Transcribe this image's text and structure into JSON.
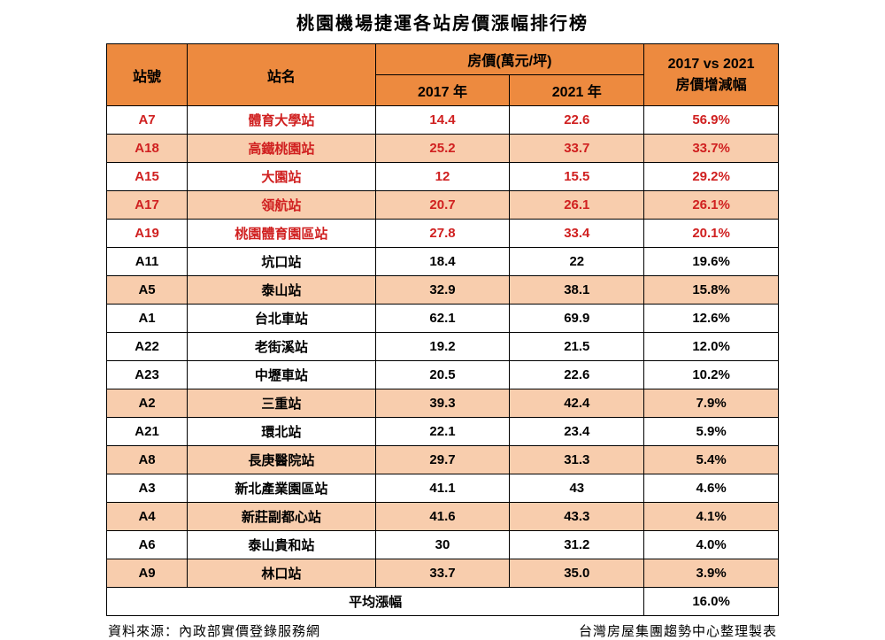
{
  "title": "桃園機場捷運各站房價漲幅排行榜",
  "headers": {
    "code": "站號",
    "name": "站名",
    "price_group": "房價(萬元/坪)",
    "price_2017": "2017 年",
    "price_2021": "2021 年",
    "change": "2017 vs 2021\n房價增減幅"
  },
  "rows": [
    {
      "code": "A7",
      "name": "體育大學站",
      "p17": "14.4",
      "p21": "22.6",
      "chg": "56.9%",
      "highlight": true,
      "shade": false
    },
    {
      "code": "A18",
      "name": "高鐵桃園站",
      "p17": "25.2",
      "p21": "33.7",
      "chg": "33.7%",
      "highlight": true,
      "shade": true
    },
    {
      "code": "A15",
      "name": "大園站",
      "p17": "12",
      "p21": "15.5",
      "chg": "29.2%",
      "highlight": true,
      "shade": false
    },
    {
      "code": "A17",
      "name": "領航站",
      "p17": "20.7",
      "p21": "26.1",
      "chg": "26.1%",
      "highlight": true,
      "shade": true
    },
    {
      "code": "A19",
      "name": "桃園體育園區站",
      "p17": "27.8",
      "p21": "33.4",
      "chg": "20.1%",
      "highlight": true,
      "shade": false
    },
    {
      "code": "A11",
      "name": "坑口站",
      "p17": "18.4",
      "p21": "22",
      "chg": "19.6%",
      "highlight": false,
      "shade": false
    },
    {
      "code": "A5",
      "name": "泰山站",
      "p17": "32.9",
      "p21": "38.1",
      "chg": "15.8%",
      "highlight": false,
      "shade": true
    },
    {
      "code": "A1",
      "name": "台北車站",
      "p17": "62.1",
      "p21": "69.9",
      "chg": "12.6%",
      "highlight": false,
      "shade": false
    },
    {
      "code": "A22",
      "name": "老街溪站",
      "p17": "19.2",
      "p21": "21.5",
      "chg": "12.0%",
      "highlight": false,
      "shade": false
    },
    {
      "code": "A23",
      "name": "中壢車站",
      "p17": "20.5",
      "p21": "22.6",
      "chg": "10.2%",
      "highlight": false,
      "shade": false
    },
    {
      "code": "A2",
      "name": "三重站",
      "p17": "39.3",
      "p21": "42.4",
      "chg": "7.9%",
      "highlight": false,
      "shade": true
    },
    {
      "code": "A21",
      "name": "環北站",
      "p17": "22.1",
      "p21": "23.4",
      "chg": "5.9%",
      "highlight": false,
      "shade": false
    },
    {
      "code": "A8",
      "name": "長庚醫院站",
      "p17": "29.7",
      "p21": "31.3",
      "chg": "5.4%",
      "highlight": false,
      "shade": true
    },
    {
      "code": "A3",
      "name": "新北產業園區站",
      "p17": "41.1",
      "p21": "43",
      "chg": "4.6%",
      "highlight": false,
      "shade": false
    },
    {
      "code": "A4",
      "name": "新莊副都心站",
      "p17": "41.6",
      "p21": "43.3",
      "chg": "4.1%",
      "highlight": false,
      "shade": true
    },
    {
      "code": "A6",
      "name": "泰山貴和站",
      "p17": "30",
      "p21": "31.2",
      "chg": "4.0%",
      "highlight": false,
      "shade": false
    },
    {
      "code": "A9",
      "name": "林口站",
      "p17": "33.7",
      "p21": "35.0",
      "chg": "3.9%",
      "highlight": false,
      "shade": true
    }
  ],
  "avg": {
    "label": "平均漲幅",
    "value": "16.0%"
  },
  "footer": {
    "left": "資料來源：內政部實價登錄服務網",
    "right": "台灣房屋集團趨勢中心整理製表"
  },
  "colors": {
    "header_bg": "#ed8a3f",
    "shade_bg": "#f8cdad",
    "plain_bg": "#ffffff",
    "highlight_text": "#d02020",
    "normal_text": "#000000",
    "border": "#000000"
  }
}
